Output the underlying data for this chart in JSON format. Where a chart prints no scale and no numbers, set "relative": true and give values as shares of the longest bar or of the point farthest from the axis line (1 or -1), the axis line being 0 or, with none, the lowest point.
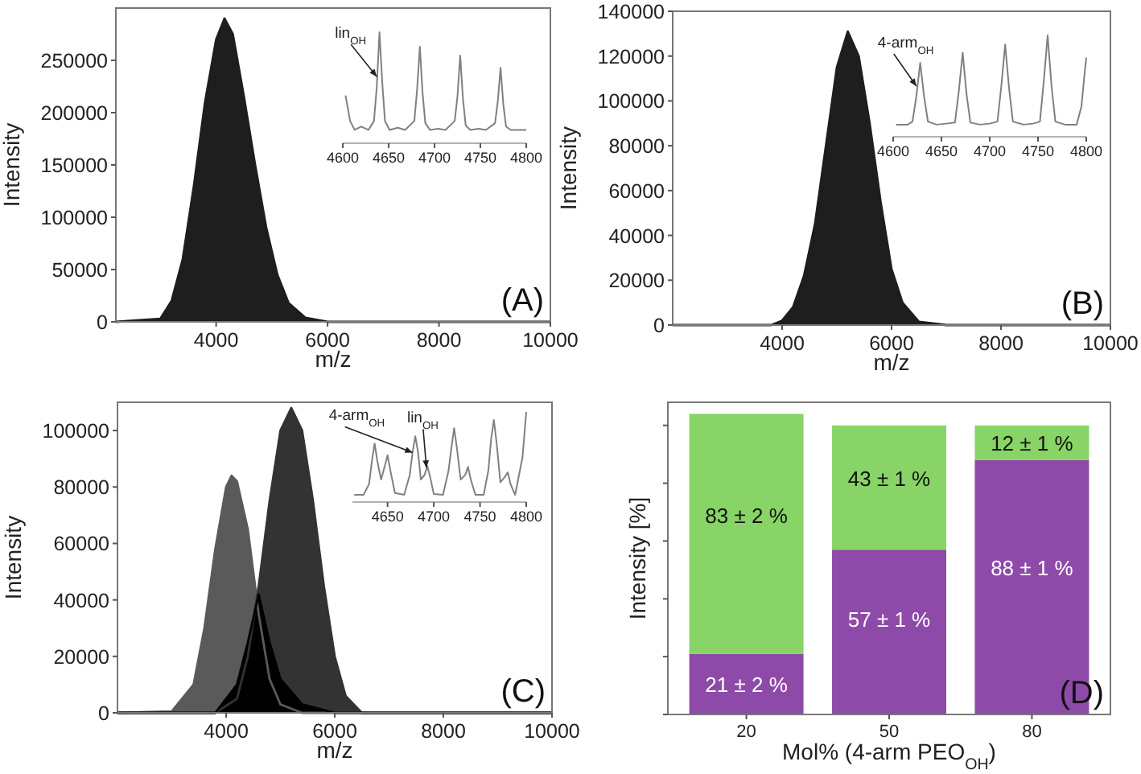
{
  "chart_data": [
    {
      "type": "area",
      "xlabel": "m/z",
      "ylabel": "Intensity",
      "xlim": [
        2200,
        10000
      ],
      "xticks": [
        4000,
        6000,
        8000,
        10000
      ],
      "ylim": [
        0,
        300000
      ],
      "yticks": [
        0,
        50000,
        100000,
        150000,
        200000,
        250000
      ],
      "annotations": [
        "(A)"
      ],
      "series": [
        {
          "color": "#1e1e1e",
          "x": [
            2200,
            3000,
            3200,
            3400,
            3600,
            3800,
            4000,
            4150,
            4300,
            4500,
            4700,
            4900,
            5100,
            5300,
            5600,
            6000,
            10000
          ],
          "values": [
            0,
            3000,
            20000,
            60000,
            130000,
            210000,
            270000,
            290000,
            275000,
            215000,
            150000,
            90000,
            45000,
            18000,
            4000,
            0,
            0
          ]
        }
      ]
    },
    {
      "type": "line",
      "relative": true,
      "xlim": [
        4600,
        4800
      ],
      "xticks": [
        4600,
        4650,
        4700,
        4750,
        4800
      ],
      "annotations": [
        {
          "text": "lin$_{OH}$",
          "x": 4637,
          "y": 0.6
        }
      ],
      "series": [
        {
          "color": "#808080",
          "x": [
            4603,
            4608,
            4613,
            4620,
            4628,
            4634,
            4637,
            4640,
            4643,
            4646,
            4651,
            4660,
            4668,
            4678,
            4681,
            4684,
            4687,
            4690,
            4695,
            4704,
            4712,
            4722,
            4725,
            4728,
            4731,
            4734,
            4739,
            4748,
            4756,
            4766,
            4769,
            4772,
            4775,
            4778,
            4783,
            4792,
            4800
          ],
          "values": [
            0.43,
            0.2,
            0.12,
            0.15,
            0.12,
            0.2,
            0.5,
            1.0,
            0.55,
            0.2,
            0.12,
            0.14,
            0.12,
            0.2,
            0.48,
            0.87,
            0.45,
            0.18,
            0.12,
            0.13,
            0.12,
            0.2,
            0.42,
            0.79,
            0.4,
            0.16,
            0.12,
            0.13,
            0.12,
            0.18,
            0.38,
            0.68,
            0.35,
            0.15,
            0.12,
            0.12,
            0.12
          ]
        }
      ]
    },
    {
      "type": "area",
      "xlabel": "m/z",
      "ylabel": "Intensity",
      "xlim": [
        2000,
        10000
      ],
      "xticks": [
        4000,
        6000,
        8000,
        10000
      ],
      "ylim": [
        0,
        140000
      ],
      "yticks": [
        0,
        20000,
        40000,
        60000,
        80000,
        100000,
        120000,
        140000
      ],
      "annotations": [
        "(B)"
      ],
      "series": [
        {
          "color": "#1e1e1e",
          "x": [
            2000,
            3800,
            4000,
            4200,
            4400,
            4600,
            4800,
            5000,
            5200,
            5400,
            5600,
            5800,
            6000,
            6200,
            6500,
            7000,
            10000
          ],
          "values": [
            0,
            0,
            2000,
            8000,
            22000,
            45000,
            80000,
            115000,
            131000,
            120000,
            90000,
            55000,
            25000,
            10000,
            1500,
            0,
            0
          ]
        }
      ]
    },
    {
      "type": "line",
      "relative": true,
      "xlim": [
        4600,
        4800
      ],
      "xticks": [
        4600,
        4650,
        4700,
        4750,
        4800
      ],
      "annotations": [
        {
          "text": "4-arm$_{OH}$",
          "x": 4624,
          "y": 0.5
        }
      ],
      "series": [
        {
          "color": "#808080",
          "x": [
            4603,
            4615,
            4620,
            4624,
            4628,
            4632,
            4636,
            4645,
            4655,
            4664,
            4668,
            4672,
            4676,
            4680,
            4690,
            4700,
            4708,
            4712,
            4716,
            4720,
            4724,
            4735,
            4745,
            4752,
            4756,
            4760,
            4764,
            4768,
            4778,
            4790,
            4795,
            4798,
            4800
          ],
          "values": [
            0.12,
            0.12,
            0.15,
            0.4,
            0.73,
            0.4,
            0.15,
            0.12,
            0.13,
            0.14,
            0.45,
            0.83,
            0.42,
            0.14,
            0.12,
            0.13,
            0.15,
            0.5,
            0.91,
            0.48,
            0.15,
            0.12,
            0.13,
            0.15,
            0.55,
            1.0,
            0.5,
            0.15,
            0.12,
            0.12,
            0.3,
            0.6,
            0.78
          ]
        }
      ]
    },
    {
      "type": "area",
      "xlabel": "m/z",
      "ylabel": "Intensity",
      "xlim": [
        2000,
        10000
      ],
      "xticks": [
        4000,
        6000,
        8000,
        10000
      ],
      "ylim": [
        0,
        110000
      ],
      "yticks": [
        0,
        20000,
        40000,
        60000,
        80000,
        100000
      ],
      "annotations": [
        "(C)"
      ],
      "series": [
        {
          "color": "#5a5a5a",
          "x": [
            2000,
            3000,
            3400,
            3600,
            3800,
            4000,
            4100,
            4200,
            4400,
            4600,
            4800,
            5000,
            5400,
            10000
          ],
          "values": [
            0,
            500,
            10000,
            30000,
            58000,
            80000,
            84000,
            82000,
            65000,
            35000,
            12000,
            3000,
            0,
            0
          ]
        },
        {
          "color": "#333333",
          "x": [
            2000,
            3800,
            4200,
            4400,
            4600,
            4800,
            5000,
            5200,
            5400,
            5600,
            5800,
            6000,
            6200,
            6500,
            10000
          ],
          "values": [
            0,
            0,
            5000,
            20000,
            45000,
            75000,
            100000,
            108000,
            100000,
            75000,
            45000,
            20000,
            6000,
            0,
            0
          ]
        },
        {
          "color": "#000000",
          "x": [
            2000,
            3800,
            4200,
            4400,
            4600,
            4800,
            5000,
            5400,
            6000,
            10000
          ],
          "values": [
            0,
            0,
            10000,
            25000,
            42000,
            25000,
            12000,
            3000,
            0,
            0
          ]
        }
      ]
    },
    {
      "type": "line",
      "relative": true,
      "xlim": [
        4612,
        4800
      ],
      "xticks": [
        4650,
        4700,
        4750,
        4800
      ],
      "annotations": [
        {
          "text": "4-arm$_{OH}$",
          "x": 4677,
          "y": 0.55
        },
        {
          "text": "lin$_{OH}$",
          "x": 4692,
          "y": 0.38
        }
      ],
      "series": [
        {
          "color": "#808080",
          "x": [
            4614,
            4624,
            4630,
            4633,
            4636,
            4639,
            4643,
            4647,
            4650,
            4653,
            4658,
            4668,
            4674,
            4677,
            4680,
            4683,
            4686,
            4690,
            4693,
            4696,
            4700,
            4710,
            4716,
            4719,
            4722,
            4725,
            4729,
            4734,
            4737,
            4740,
            4745,
            4754,
            4759,
            4762,
            4765,
            4768,
            4772,
            4777,
            4780,
            4783,
            4788,
            4796,
            4800
          ],
          "values": [
            0.08,
            0.08,
            0.2,
            0.45,
            0.65,
            0.45,
            0.25,
            0.4,
            0.52,
            0.35,
            0.1,
            0.08,
            0.3,
            0.55,
            0.73,
            0.55,
            0.25,
            0.3,
            0.4,
            0.28,
            0.09,
            0.08,
            0.35,
            0.6,
            0.82,
            0.6,
            0.25,
            0.3,
            0.39,
            0.25,
            0.08,
            0.08,
            0.35,
            0.7,
            0.91,
            0.65,
            0.22,
            0.28,
            0.33,
            0.2,
            0.08,
            0.5,
            1.0
          ]
        }
      ]
    },
    {
      "type": "bar",
      "stacked": true,
      "xlabel": "Mol% (4-arm PEO$_{OH}$)",
      "ylabel": "Intensity [%]",
      "categories": [
        "20",
        "50",
        "80"
      ],
      "ylim": [
        0,
        108
      ],
      "yticks": [
        {
          "value": 0,
          "label": null
        },
        {
          "value": 20,
          "label": null
        },
        {
          "value": 40,
          "label": null
        },
        {
          "value": 60,
          "label": null
        },
        {
          "value": 80,
          "label": null
        },
        {
          "value": 100,
          "label": null
        }
      ],
      "annotations": [
        "(D)"
      ],
      "series": [
        {
          "color": "#8e4aa8",
          "values": [
            21,
            57,
            88
          ],
          "value_labels": [
            "21 ± 2 %",
            "57 ± 1 %",
            "88 ± 1 %"
          ]
        },
        {
          "color": "#88d466",
          "values": [
            83,
            43,
            12
          ],
          "value_labels": [
            "83 ± 2 %",
            "43 ± 1 %",
            "12 ± 1 %"
          ]
        }
      ]
    }
  ]
}
